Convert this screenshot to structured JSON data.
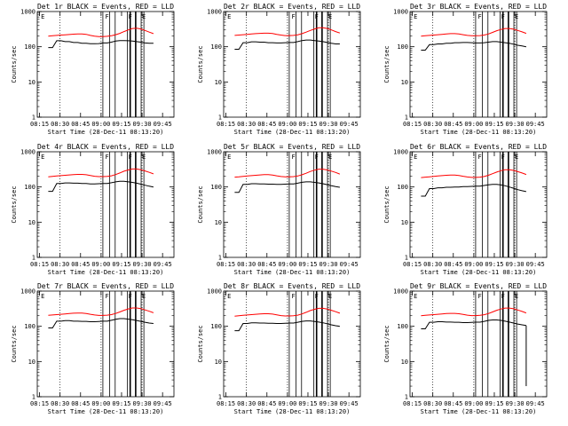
{
  "panels": [
    {
      "title": "Det 1r BLACK = Events, RED = LLD",
      "ev": [
        null,
        95,
        95,
        148,
        148,
        140,
        140,
        132,
        132,
        125,
        125,
        122,
        122,
        123,
        128,
        128,
        135,
        145,
        150,
        150,
        148,
        145,
        140,
        135,
        128,
        126,
        126
      ],
      "lld": [
        null,
        200,
        205,
        210,
        215,
        218,
        222,
        228,
        230,
        230,
        225,
        210,
        200,
        195,
        195,
        198,
        205,
        220,
        240,
        270,
        300,
        330,
        335,
        320,
        290,
        260,
        235
      ],
      "evdip": [],
      "evend": null,
      "flares": [
        68,
        77,
        79
      ]
    },
    {
      "title": "Det 2r BLACK = Events, RED = LLD",
      "ev": [
        null,
        85,
        85,
        130,
        130,
        138,
        138,
        135,
        135,
        130,
        130,
        128,
        128,
        130,
        132,
        132,
        140,
        150,
        155,
        155,
        150,
        145,
        140,
        132,
        125,
        120,
        120
      ],
      "lld": [
        null,
        210,
        215,
        220,
        225,
        230,
        235,
        240,
        242,
        242,
        238,
        225,
        215,
        208,
        208,
        210,
        218,
        235,
        260,
        290,
        320,
        345,
        345,
        330,
        300,
        270,
        245
      ],
      "evdip": [],
      "evend": null,
      "flares": [
        68,
        76,
        78
      ]
    },
    {
      "title": "Det 3r BLACK = Events, RED = LLD",
      "ev": [
        null,
        80,
        80,
        115,
        115,
        120,
        120,
        125,
        125,
        130,
        130,
        132,
        132,
        130,
        128,
        128,
        130,
        135,
        140,
        140,
        135,
        130,
        125,
        118,
        110,
        105,
        100
      ],
      "lld": [
        null,
        200,
        205,
        210,
        215,
        220,
        225,
        230,
        235,
        235,
        230,
        220,
        210,
        205,
        205,
        208,
        215,
        230,
        255,
        285,
        310,
        330,
        330,
        315,
        290,
        265,
        240
      ],
      "evdip": [],
      "evend": null,
      "flares": [
        68,
        76,
        78
      ]
    },
    {
      "title": "Det 4r BLACK = Events, RED = LLD",
      "ev": [
        null,
        75,
        75,
        125,
        125,
        130,
        130,
        128,
        128,
        125,
        125,
        122,
        122,
        124,
        126,
        126,
        132,
        140,
        145,
        145,
        140,
        135,
        128,
        120,
        112,
        105,
        100
      ],
      "lld": [
        null,
        195,
        200,
        205,
        210,
        215,
        220,
        225,
        228,
        228,
        222,
        212,
        202,
        197,
        197,
        200,
        208,
        225,
        250,
        280,
        305,
        325,
        325,
        310,
        285,
        260,
        235
      ],
      "evdip": [],
      "evend": null,
      "flares": [
        68,
        76,
        78
      ]
    },
    {
      "title": "Det 5r BLACK = Events, RED = LLD",
      "ev": [
        null,
        70,
        70,
        118,
        118,
        124,
        124,
        122,
        122,
        120,
        120,
        118,
        118,
        120,
        122,
        122,
        128,
        136,
        140,
        140,
        135,
        130,
        124,
        116,
        108,
        102,
        98
      ],
      "lld": [
        null,
        190,
        195,
        200,
        205,
        210,
        215,
        220,
        225,
        225,
        218,
        208,
        198,
        193,
        193,
        197,
        205,
        222,
        246,
        275,
        300,
        320,
        320,
        305,
        282,
        258,
        232
      ],
      "evdip": [],
      "evend": null,
      "flares": [
        68,
        76,
        78
      ]
    },
    {
      "title": "Det 6r BLACK = Events, RED = LLD",
      "ev": [
        null,
        55,
        55,
        90,
        90,
        95,
        95,
        98,
        98,
        100,
        100,
        102,
        102,
        104,
        106,
        106,
        110,
        115,
        118,
        118,
        114,
        108,
        100,
        92,
        84,
        78,
        74
      ],
      "lld": [
        null,
        185,
        190,
        195,
        200,
        205,
        210,
        215,
        218,
        218,
        212,
        202,
        192,
        187,
        187,
        190,
        198,
        215,
        238,
        265,
        290,
        310,
        310,
        296,
        272,
        250,
        226
      ],
      "evdip": [],
      "evend": null,
      "flares": [
        68,
        76,
        78
      ]
    },
    {
      "title": "Det 7r BLACK = Events, RED = LLD",
      "ev": [
        null,
        90,
        90,
        140,
        140,
        145,
        145,
        140,
        140,
        138,
        138,
        135,
        135,
        137,
        140,
        140,
        148,
        158,
        165,
        165,
        160,
        154,
        146,
        138,
        130,
        124,
        120
      ],
      "lld": [
        null,
        205,
        210,
        215,
        220,
        225,
        230,
        235,
        238,
        238,
        232,
        220,
        210,
        204,
        204,
        207,
        215,
        232,
        256,
        286,
        312,
        332,
        332,
        318,
        292,
        268,
        242
      ],
      "evdip": [],
      "evend": null,
      "flares": [
        68,
        76,
        78
      ]
    },
    {
      "title": "Det 8r BLACK = Events, RED = LLD",
      "ev": [
        null,
        75,
        75,
        120,
        120,
        126,
        126,
        124,
        124,
        122,
        122,
        120,
        120,
        122,
        124,
        124,
        130,
        138,
        142,
        142,
        137,
        132,
        126,
        118,
        110,
        104,
        100
      ],
      "lld": [
        null,
        195,
        200,
        205,
        210,
        215,
        220,
        225,
        228,
        228,
        222,
        212,
        202,
        197,
        197,
        200,
        208,
        225,
        250,
        280,
        305,
        325,
        325,
        310,
        285,
        260,
        235
      ],
      "evdip": [],
      "evend": null,
      "flares": [
        68,
        76,
        78
      ]
    },
    {
      "title": "Det 9r BLACK = Events, RED = LLD",
      "ev": [
        null,
        85,
        85,
        130,
        130,
        135,
        135,
        132,
        132,
        130,
        130,
        127,
        127,
        129,
        131,
        131,
        138,
        147,
        152,
        152,
        147,
        140,
        132,
        124,
        116,
        110,
        105
      ],
      "lld": [
        null,
        200,
        205,
        210,
        215,
        220,
        225,
        230,
        233,
        233,
        227,
        217,
        207,
        202,
        202,
        205,
        213,
        230,
        255,
        285,
        310,
        330,
        330,
        315,
        290,
        265,
        240
      ],
      "evdip": [],
      "evend": 2,
      "flares": [
        68,
        76,
        78
      ]
    }
  ],
  "chart_data": {
    "type": "line",
    "subplots": 9,
    "x_tick_labels": [
      "08:15",
      "08:30",
      "08:45",
      "09:00",
      "09:15",
      "09:30",
      "09:45"
    ],
    "xlabel": "Start Time (28-Dec-11 08:13:20)",
    "ylabel": "Counts/sec",
    "y_scale": "log",
    "ylim": [
      1,
      1000
    ],
    "y_tick_labels": [
      "1",
      "10",
      "100",
      "1000"
    ],
    "series": [
      {
        "name": "Events",
        "color": "#000000"
      },
      {
        "name": "LLD",
        "color": "#ff0000"
      }
    ],
    "annotations": [
      "E",
      "F",
      "E"
    ]
  },
  "colors": {
    "events": "#000000",
    "lld": "#ff0000",
    "axis": "#000000"
  }
}
